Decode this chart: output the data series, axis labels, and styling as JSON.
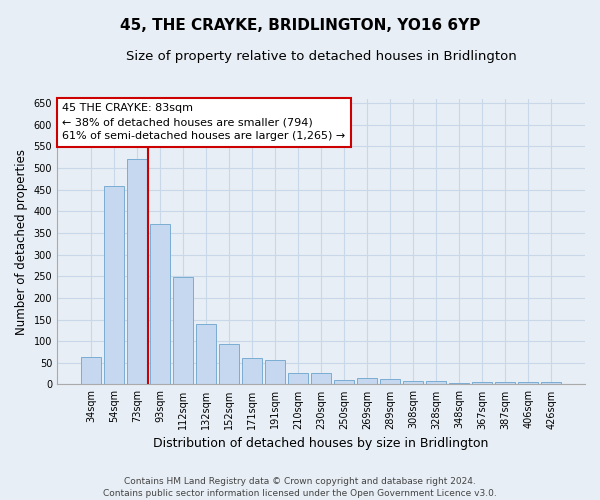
{
  "title": "45, THE CRAYKE, BRIDLINGTON, YO16 6YP",
  "subtitle": "Size of property relative to detached houses in Bridlington",
  "xlabel": "Distribution of detached houses by size in Bridlington",
  "ylabel": "Number of detached properties",
  "categories": [
    "34sqm",
    "54sqm",
    "73sqm",
    "93sqm",
    "112sqm",
    "132sqm",
    "152sqm",
    "171sqm",
    "191sqm",
    "210sqm",
    "230sqm",
    "250sqm",
    "269sqm",
    "289sqm",
    "308sqm",
    "328sqm",
    "348sqm",
    "367sqm",
    "387sqm",
    "406sqm",
    "426sqm"
  ],
  "values": [
    63,
    458,
    520,
    370,
    248,
    140,
    93,
    61,
    57,
    27,
    27,
    10,
    14,
    13,
    8,
    9,
    4,
    6,
    5,
    5,
    5
  ],
  "bar_color": "#c5d8ef",
  "bar_edge_color": "#7aadd4",
  "grid_color": "#c8d8e8",
  "background_color": "#e8eef5",
  "plot_bg_color": "#e8eef5",
  "vline_color": "#cc0000",
  "annotation_line1": "45 THE CRAYKE: 83sqm",
  "annotation_line2": "← 38% of detached houses are smaller (794)",
  "annotation_line3": "61% of semi-detached houses are larger (1,265) →",
  "annotation_box_color": "#cc0000",
  "ylim": [
    0,
    660
  ],
  "yticks": [
    0,
    50,
    100,
    150,
    200,
    250,
    300,
    350,
    400,
    450,
    500,
    550,
    600,
    650
  ],
  "footer_line1": "Contains HM Land Registry data © Crown copyright and database right 2024.",
  "footer_line2": "Contains public sector information licensed under the Open Government Licence v3.0.",
  "title_fontsize": 11,
  "subtitle_fontsize": 9.5,
  "ylabel_fontsize": 8.5,
  "xlabel_fontsize": 9,
  "tick_fontsize": 7,
  "annotation_fontsize": 8,
  "footer_fontsize": 6.5
}
